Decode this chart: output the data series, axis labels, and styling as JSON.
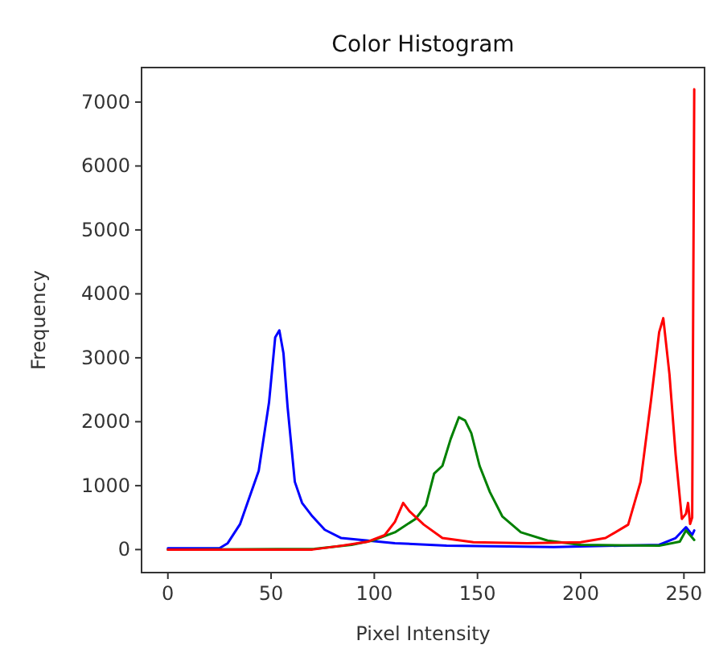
{
  "chart_data": {
    "type": "line",
    "title": "Color Histogram",
    "xlabel": "Pixel Intensity",
    "ylabel": "Frequency",
    "xlim": [
      -12.75,
      260
    ],
    "ylim": [
      -360,
      7540
    ],
    "xticks": [
      0,
      50,
      100,
      150,
      200,
      250
    ],
    "yticks": [
      0,
      1000,
      2000,
      3000,
      4000,
      5000,
      6000,
      7000
    ],
    "grid": false,
    "series": [
      {
        "color": "#0000ff",
        "x": [
          0,
          25,
          29,
          35,
          44,
          49,
          52,
          54,
          56,
          58,
          61.5,
          65,
          70,
          76,
          84,
          97,
          110,
          135,
          187,
          238,
          246,
          251,
          254,
          255
        ],
        "values": [
          20,
          20,
          100,
          400,
          1230,
          2300,
          3320,
          3430,
          3070,
          2230,
          1060,
          730,
          520,
          310,
          180,
          140,
          100,
          60,
          40,
          75,
          180,
          350,
          230,
          300
        ]
      },
      {
        "color": "#008000",
        "x": [
          0,
          71,
          89,
          99,
          110,
          120,
          125,
          129,
          133,
          137,
          141,
          144,
          147,
          151,
          156,
          162,
          171,
          184,
          200,
          238,
          248,
          251,
          255
        ],
        "values": [
          0,
          10,
          75,
          140,
          270,
          480,
          690,
          1190,
          1310,
          1730,
          2070,
          2020,
          1820,
          1310,
          900,
          520,
          270,
          140,
          75,
          60,
          125,
          300,
          150
        ]
      },
      {
        "color": "#ff0000",
        "x": [
          0,
          70,
          84,
          97,
          105,
          110,
          114,
          117,
          124,
          133,
          148,
          174,
          200,
          212,
          223,
          229,
          234,
          238,
          240,
          243,
          246,
          249,
          251,
          252,
          253,
          254,
          255
        ],
        "values": [
          0,
          0,
          60,
          125,
          225,
          435,
          730,
          600,
          390,
          180,
          115,
          100,
          115,
          180,
          390,
          1060,
          2320,
          3400,
          3620,
          2740,
          1480,
          480,
          560,
          730,
          400,
          500,
          7200
        ]
      }
    ]
  }
}
